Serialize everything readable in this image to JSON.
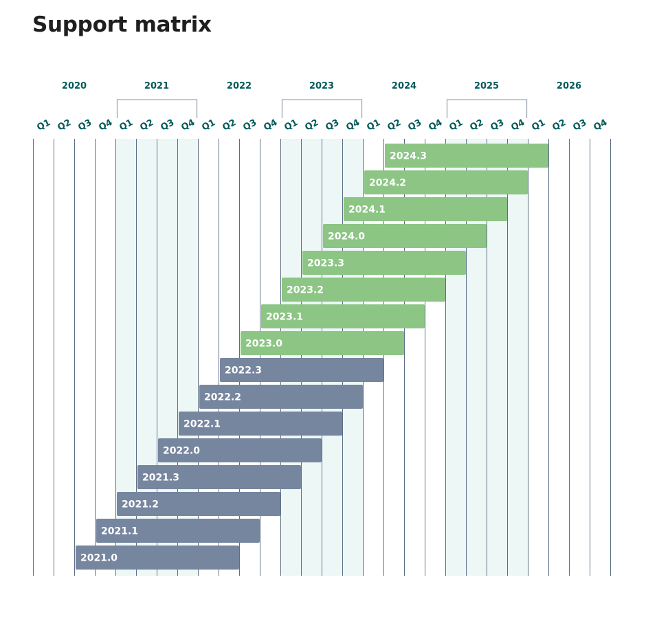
{
  "title": "Support matrix",
  "colors": {
    "heading": "#005a5a",
    "grid": "#5c6f86",
    "shade": "#edf7f6",
    "bracket": "#9aa6b6",
    "current": "#8cc584",
    "past": "#77869f",
    "title": "#1f1f1f"
  },
  "chart_data": {
    "type": "gantt",
    "title": "Support matrix",
    "years": [
      "2020",
      "2021",
      "2022",
      "2023",
      "2024",
      "2025",
      "2026"
    ],
    "shaded_years": [
      "2021",
      "2023",
      "2025"
    ],
    "quarters": [
      "Q1",
      "Q2",
      "Q3",
      "Q4"
    ],
    "x_range": [
      "2020 Q1",
      "2026 Q4"
    ],
    "grid": true,
    "bars": [
      {
        "label": "2024.3",
        "start": "2024 Q2",
        "end": "2026 Q1",
        "group": "current"
      },
      {
        "label": "2024.2",
        "start": "2024 Q1",
        "end": "2025 Q4",
        "group": "current"
      },
      {
        "label": "2024.1",
        "start": "2023 Q4",
        "end": "2025 Q3",
        "group": "current"
      },
      {
        "label": "2024.0",
        "start": "2023 Q3",
        "end": "2025 Q2",
        "group": "current"
      },
      {
        "label": "2023.3",
        "start": "2023 Q2",
        "end": "2025 Q1",
        "group": "current"
      },
      {
        "label": "2023.2",
        "start": "2023 Q1",
        "end": "2024 Q4",
        "group": "current"
      },
      {
        "label": "2023.1",
        "start": "2022 Q4",
        "end": "2024 Q3",
        "group": "current"
      },
      {
        "label": "2023.0",
        "start": "2022 Q3",
        "end": "2024 Q2",
        "group": "current"
      },
      {
        "label": "2022.3",
        "start": "2022 Q2",
        "end": "2024 Q1",
        "group": "past"
      },
      {
        "label": "2022.2",
        "start": "2022 Q1",
        "end": "2023 Q4",
        "group": "past"
      },
      {
        "label": "2022.1",
        "start": "2021 Q4",
        "end": "2023 Q3",
        "group": "past"
      },
      {
        "label": "2022.0",
        "start": "2021 Q3",
        "end": "2023 Q2",
        "group": "past"
      },
      {
        "label": "2021.3",
        "start": "2021 Q2",
        "end": "2023 Q1",
        "group": "past"
      },
      {
        "label": "2021.2",
        "start": "2021 Q1",
        "end": "2022 Q4",
        "group": "past"
      },
      {
        "label": "2021.1",
        "start": "2020 Q4",
        "end": "2022 Q3",
        "group": "past"
      },
      {
        "label": "2021.0",
        "start": "2020 Q3",
        "end": "2022 Q2",
        "group": "past"
      }
    ]
  }
}
